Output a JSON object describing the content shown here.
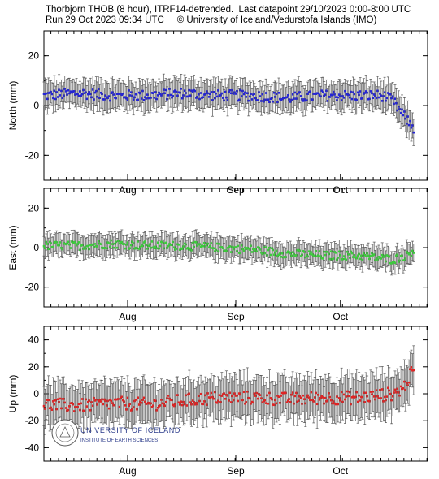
{
  "header": {
    "line1": "Thorbjorn THOB (8 hour), ITRF14-detrended.  Last datapoint 29/10/2023 0:00-8:00 UTC",
    "line2": "Run 29 Oct 2023 09:34 UTC     © University of Iceland/Vedurstofa Islands (IMO)"
  },
  "logo": {
    "name": "UNIVERSITY OF ICELAND",
    "subtitle": "INSTITUTE OF EARTH SCIENCES"
  },
  "chart_data": [
    {
      "type": "scatter",
      "ylabel": "North (mm)",
      "color": "#2424d6",
      "ylim": [
        -30,
        30
      ],
      "yticks": [
        -20,
        0,
        20
      ],
      "xlim_days": [
        0,
        110
      ],
      "month_labels": [
        {
          "label": "Aug",
          "day": 24
        },
        {
          "label": "Sep",
          "day": 55
        },
        {
          "label": "Oct",
          "day": 85
        }
      ],
      "keypoints": [
        {
          "day": 0,
          "value": 4
        },
        {
          "day": 10,
          "value": 5
        },
        {
          "day": 20,
          "value": 4
        },
        {
          "day": 30,
          "value": 4
        },
        {
          "day": 40,
          "value": 5
        },
        {
          "day": 50,
          "value": 4
        },
        {
          "day": 60,
          "value": 4
        },
        {
          "day": 70,
          "value": 3
        },
        {
          "day": 80,
          "value": 4
        },
        {
          "day": 90,
          "value": 4
        },
        {
          "day": 97,
          "value": 4
        },
        {
          "day": 100,
          "value": 2
        },
        {
          "day": 103,
          "value": -4
        },
        {
          "day": 106,
          "value": -9
        }
      ],
      "noise": 2.2,
      "error_bar_mm": 5
    },
    {
      "type": "scatter",
      "ylabel": "East (mm)",
      "color": "#3ccc3c",
      "ylim": [
        -30,
        30
      ],
      "yticks": [
        -20,
        0,
        20
      ],
      "xlim_days": [
        0,
        110
      ],
      "month_labels": [
        {
          "label": "Aug",
          "day": 24
        },
        {
          "label": "Sep",
          "day": 55
        },
        {
          "label": "Oct",
          "day": 85
        }
      ],
      "keypoints": [
        {
          "day": 0,
          "value": 1
        },
        {
          "day": 10,
          "value": 1
        },
        {
          "day": 20,
          "value": 2
        },
        {
          "day": 30,
          "value": 1
        },
        {
          "day": 40,
          "value": 1
        },
        {
          "day": 50,
          "value": 0
        },
        {
          "day": 60,
          "value": -1
        },
        {
          "day": 70,
          "value": -3
        },
        {
          "day": 80,
          "value": -4
        },
        {
          "day": 90,
          "value": -4
        },
        {
          "day": 100,
          "value": -6
        },
        {
          "day": 104,
          "value": -4
        },
        {
          "day": 106,
          "value": -1
        }
      ],
      "noise": 2.2,
      "error_bar_mm": 5
    },
    {
      "type": "scatter",
      "ylabel": "Up (mm)",
      "color": "#e02424",
      "ylim": [
        -50,
        50
      ],
      "yticks": [
        -40,
        -20,
        0,
        20,
        40
      ],
      "xlim_days": [
        0,
        110
      ],
      "month_labels": [
        {
          "label": "Aug",
          "day": 24
        },
        {
          "label": "Sep",
          "day": 55
        },
        {
          "label": "Oct",
          "day": 85
        }
      ],
      "keypoints": [
        {
          "day": 0,
          "value": -8
        },
        {
          "day": 10,
          "value": -9
        },
        {
          "day": 20,
          "value": -7
        },
        {
          "day": 30,
          "value": -8
        },
        {
          "day": 40,
          "value": -5
        },
        {
          "day": 50,
          "value": -3
        },
        {
          "day": 60,
          "value": -3
        },
        {
          "day": 70,
          "value": -4
        },
        {
          "day": 80,
          "value": -3
        },
        {
          "day": 90,
          "value": -3
        },
        {
          "day": 100,
          "value": 0
        },
        {
          "day": 103,
          "value": 4
        },
        {
          "day": 106,
          "value": 18
        }
      ],
      "noise": 5,
      "error_bar_mm": 14
    }
  ]
}
